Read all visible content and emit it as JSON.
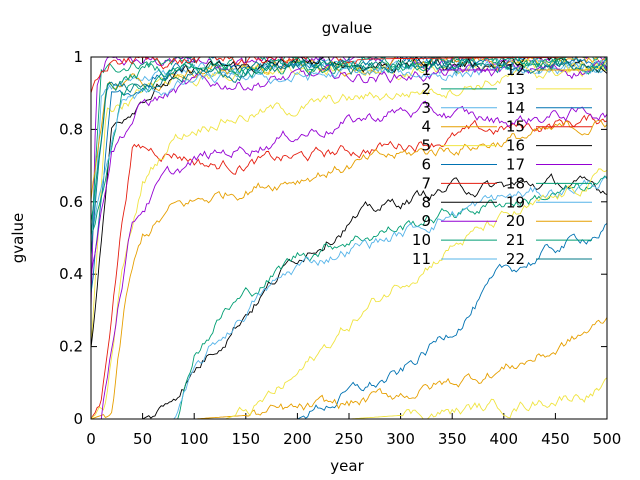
{
  "chart_data": {
    "type": "line",
    "title": "gvalue",
    "xlabel": "year",
    "ylabel": "gvalue",
    "xlim": [
      0,
      500
    ],
    "ylim": [
      0,
      1
    ],
    "x_ticks": [
      "0",
      "50",
      "100",
      "150",
      "200",
      "250",
      "300",
      "350",
      "400",
      "450",
      "500"
    ],
    "y_ticks": [
      "0",
      "0.2",
      "0.4",
      "0.6",
      "0.8",
      "1"
    ],
    "legend_position": "top-right, two columns",
    "series": [
      {
        "name": "1",
        "color": "#9400d3",
        "points": [
          [
            0,
            0.3
          ],
          [
            5,
            0.9
          ],
          [
            15,
            0.98
          ],
          [
            100,
            0.99
          ],
          [
            500,
            0.995
          ]
        ]
      },
      {
        "name": "2",
        "color": "#009e73",
        "points": [
          [
            0,
            0.5
          ],
          [
            10,
            0.95
          ],
          [
            40,
            0.99
          ],
          [
            500,
            0.99
          ]
        ]
      },
      {
        "name": "3",
        "color": "#56b4e9",
        "points": [
          [
            0,
            0.45
          ],
          [
            10,
            0.9
          ],
          [
            50,
            0.95
          ],
          [
            150,
            0.96
          ],
          [
            300,
            0.97
          ],
          [
            500,
            0.98
          ]
        ]
      },
      {
        "name": "4",
        "color": "#e69f00",
        "points": [
          [
            0,
            0.6
          ],
          [
            15,
            0.92
          ],
          [
            100,
            0.97
          ],
          [
            500,
            0.99
          ]
        ]
      },
      {
        "name": "5",
        "color": "#f0e442",
        "points": [
          [
            0,
            0.2
          ],
          [
            15,
            0.85
          ],
          [
            80,
            0.95
          ],
          [
            500,
            0.985
          ]
        ]
      },
      {
        "name": "6",
        "color": "#0072b2",
        "points": [
          [
            0,
            0.35
          ],
          [
            20,
            0.9
          ],
          [
            100,
            0.98
          ],
          [
            500,
            0.99
          ]
        ]
      },
      {
        "name": "7",
        "color": "#e51e10",
        "points": [
          [
            0,
            0
          ],
          [
            10,
            0.05
          ],
          [
            20,
            0.3
          ],
          [
            30,
            0.55
          ],
          [
            40,
            0.75
          ],
          [
            80,
            0.74
          ],
          [
            120,
            0.7
          ],
          [
            200,
            0.72
          ],
          [
            300,
            0.76
          ],
          [
            400,
            0.8
          ],
          [
            500,
            0.83
          ]
        ]
      },
      {
        "name": "8",
        "color": "#000000",
        "points": [
          [
            0,
            0.2
          ],
          [
            20,
            0.8
          ],
          [
            50,
            0.9
          ],
          [
            100,
            0.96
          ],
          [
            200,
            0.98
          ],
          [
            500,
            0.985
          ]
        ]
      },
      {
        "name": "9",
        "color": "#9400d3",
        "points": [
          [
            0,
            0.4
          ],
          [
            20,
            0.75
          ],
          [
            50,
            0.87
          ],
          [
            100,
            0.92
          ],
          [
            200,
            0.94
          ],
          [
            300,
            0.95
          ],
          [
            400,
            0.96
          ],
          [
            500,
            0.97
          ]
        ]
      },
      {
        "name": "10",
        "color": "#009e73",
        "points": [
          [
            0,
            0.5
          ],
          [
            30,
            0.9
          ],
          [
            100,
            0.96
          ],
          [
            500,
            0.985
          ]
        ]
      },
      {
        "name": "11",
        "color": "#56b4e9",
        "points": [
          [
            0,
            0.5
          ],
          [
            30,
            0.88
          ],
          [
            100,
            0.93
          ],
          [
            250,
            0.95
          ],
          [
            500,
            0.97
          ]
        ]
      },
      {
        "name": "12",
        "color": "#e69f00",
        "points": [
          [
            0,
            0
          ],
          [
            20,
            0.02
          ],
          [
            35,
            0.35
          ],
          [
            50,
            0.5
          ],
          [
            80,
            0.58
          ],
          [
            150,
            0.64
          ],
          [
            250,
            0.7
          ],
          [
            350,
            0.75
          ],
          [
            450,
            0.79
          ],
          [
            500,
            0.82
          ]
        ]
      },
      {
        "name": "13",
        "color": "#f0e442",
        "points": [
          [
            0,
            0
          ],
          [
            15,
            0.05
          ],
          [
            30,
            0.4
          ],
          [
            50,
            0.65
          ],
          [
            80,
            0.78
          ],
          [
            120,
            0.83
          ],
          [
            200,
            0.86
          ],
          [
            300,
            0.9
          ],
          [
            500,
            0.98
          ]
        ]
      },
      {
        "name": "14",
        "color": "#0072b2",
        "points": [
          [
            0,
            0
          ],
          [
            200,
            0
          ],
          [
            250,
            0.07
          ],
          [
            300,
            0.12
          ],
          [
            350,
            0.25
          ],
          [
            400,
            0.4
          ],
          [
            450,
            0.47
          ],
          [
            500,
            0.53
          ]
        ]
      },
      {
        "name": "15",
        "color": "#e51e10",
        "points": [
          [
            0,
            0.9
          ],
          [
            20,
            0.99
          ],
          [
            500,
            1.0
          ]
        ]
      },
      {
        "name": "16",
        "color": "#000000",
        "points": [
          [
            0,
            0
          ],
          [
            50,
            0
          ],
          [
            70,
            0.03
          ],
          [
            90,
            0.1
          ],
          [
            120,
            0.2
          ],
          [
            150,
            0.3
          ],
          [
            200,
            0.45
          ],
          [
            250,
            0.55
          ],
          [
            300,
            0.6
          ],
          [
            350,
            0.64
          ],
          [
            400,
            0.64
          ],
          [
            450,
            0.65
          ],
          [
            500,
            0.63
          ]
        ]
      },
      {
        "name": "17",
        "color": "#9400d3",
        "points": [
          [
            0,
            0
          ],
          [
            10,
            0
          ],
          [
            25,
            0.3
          ],
          [
            40,
            0.55
          ],
          [
            70,
            0.66
          ],
          [
            110,
            0.72
          ],
          [
            150,
            0.75
          ],
          [
            200,
            0.79
          ],
          [
            250,
            0.82
          ],
          [
            300,
            0.85
          ],
          [
            350,
            0.84
          ],
          [
            400,
            0.82
          ],
          [
            450,
            0.84
          ],
          [
            500,
            0.85
          ]
        ]
      },
      {
        "name": "18",
        "color": "#009e73",
        "points": [
          [
            0,
            0
          ],
          [
            85,
            0
          ],
          [
            100,
            0.18
          ],
          [
            130,
            0.3
          ],
          [
            160,
            0.36
          ],
          [
            200,
            0.45
          ],
          [
            250,
            0.5
          ],
          [
            300,
            0.53
          ],
          [
            350,
            0.57
          ],
          [
            400,
            0.6
          ],
          [
            450,
            0.62
          ],
          [
            500,
            0.64
          ]
        ]
      },
      {
        "name": "19",
        "color": "#56b4e9",
        "points": [
          [
            0,
            0
          ],
          [
            80,
            0
          ],
          [
            100,
            0.12
          ],
          [
            120,
            0.2
          ],
          [
            160,
            0.33
          ],
          [
            200,
            0.42
          ],
          [
            250,
            0.47
          ],
          [
            300,
            0.51
          ],
          [
            350,
            0.57
          ],
          [
            400,
            0.61
          ],
          [
            450,
            0.63
          ],
          [
            500,
            0.66
          ]
        ]
      },
      {
        "name": "20",
        "color": "#e69f00",
        "points": [
          [
            0,
            0
          ],
          [
            100,
            0
          ],
          [
            200,
            0.02
          ],
          [
            250,
            0.04
          ],
          [
            300,
            0.07
          ],
          [
            350,
            0.1
          ],
          [
            400,
            0.14
          ],
          [
            450,
            0.19
          ],
          [
            500,
            0.27
          ]
        ]
      },
      {
        "name": "21",
        "color": "#009e73",
        "points": [
          [
            0,
            0.55
          ],
          [
            15,
            0.92
          ],
          [
            60,
            0.97
          ],
          [
            500,
            0.99
          ]
        ]
      },
      {
        "name": "22",
        "color": "#007a87",
        "points": [
          [
            0,
            0.45
          ],
          [
            15,
            0.9
          ],
          [
            60,
            0.95
          ],
          [
            200,
            0.97
          ],
          [
            500,
            0.98
          ]
        ]
      }
    ],
    "extra_lines": [
      {
        "color": "#f0e442",
        "points": [
          [
            0,
            0
          ],
          [
            130,
            0
          ],
          [
            160,
            0.03
          ],
          [
            200,
            0.12
          ],
          [
            250,
            0.26
          ],
          [
            300,
            0.38
          ],
          [
            350,
            0.48
          ],
          [
            400,
            0.55
          ],
          [
            450,
            0.6
          ],
          [
            500,
            0.68
          ]
        ]
      },
      {
        "color": "#f0e442",
        "points": [
          [
            0,
            0
          ],
          [
            250,
            0
          ],
          [
            300,
            0.01
          ],
          [
            350,
            0.02
          ],
          [
            400,
            0.035
          ],
          [
            450,
            0.06
          ],
          [
            500,
            0.09
          ]
        ]
      }
    ]
  }
}
